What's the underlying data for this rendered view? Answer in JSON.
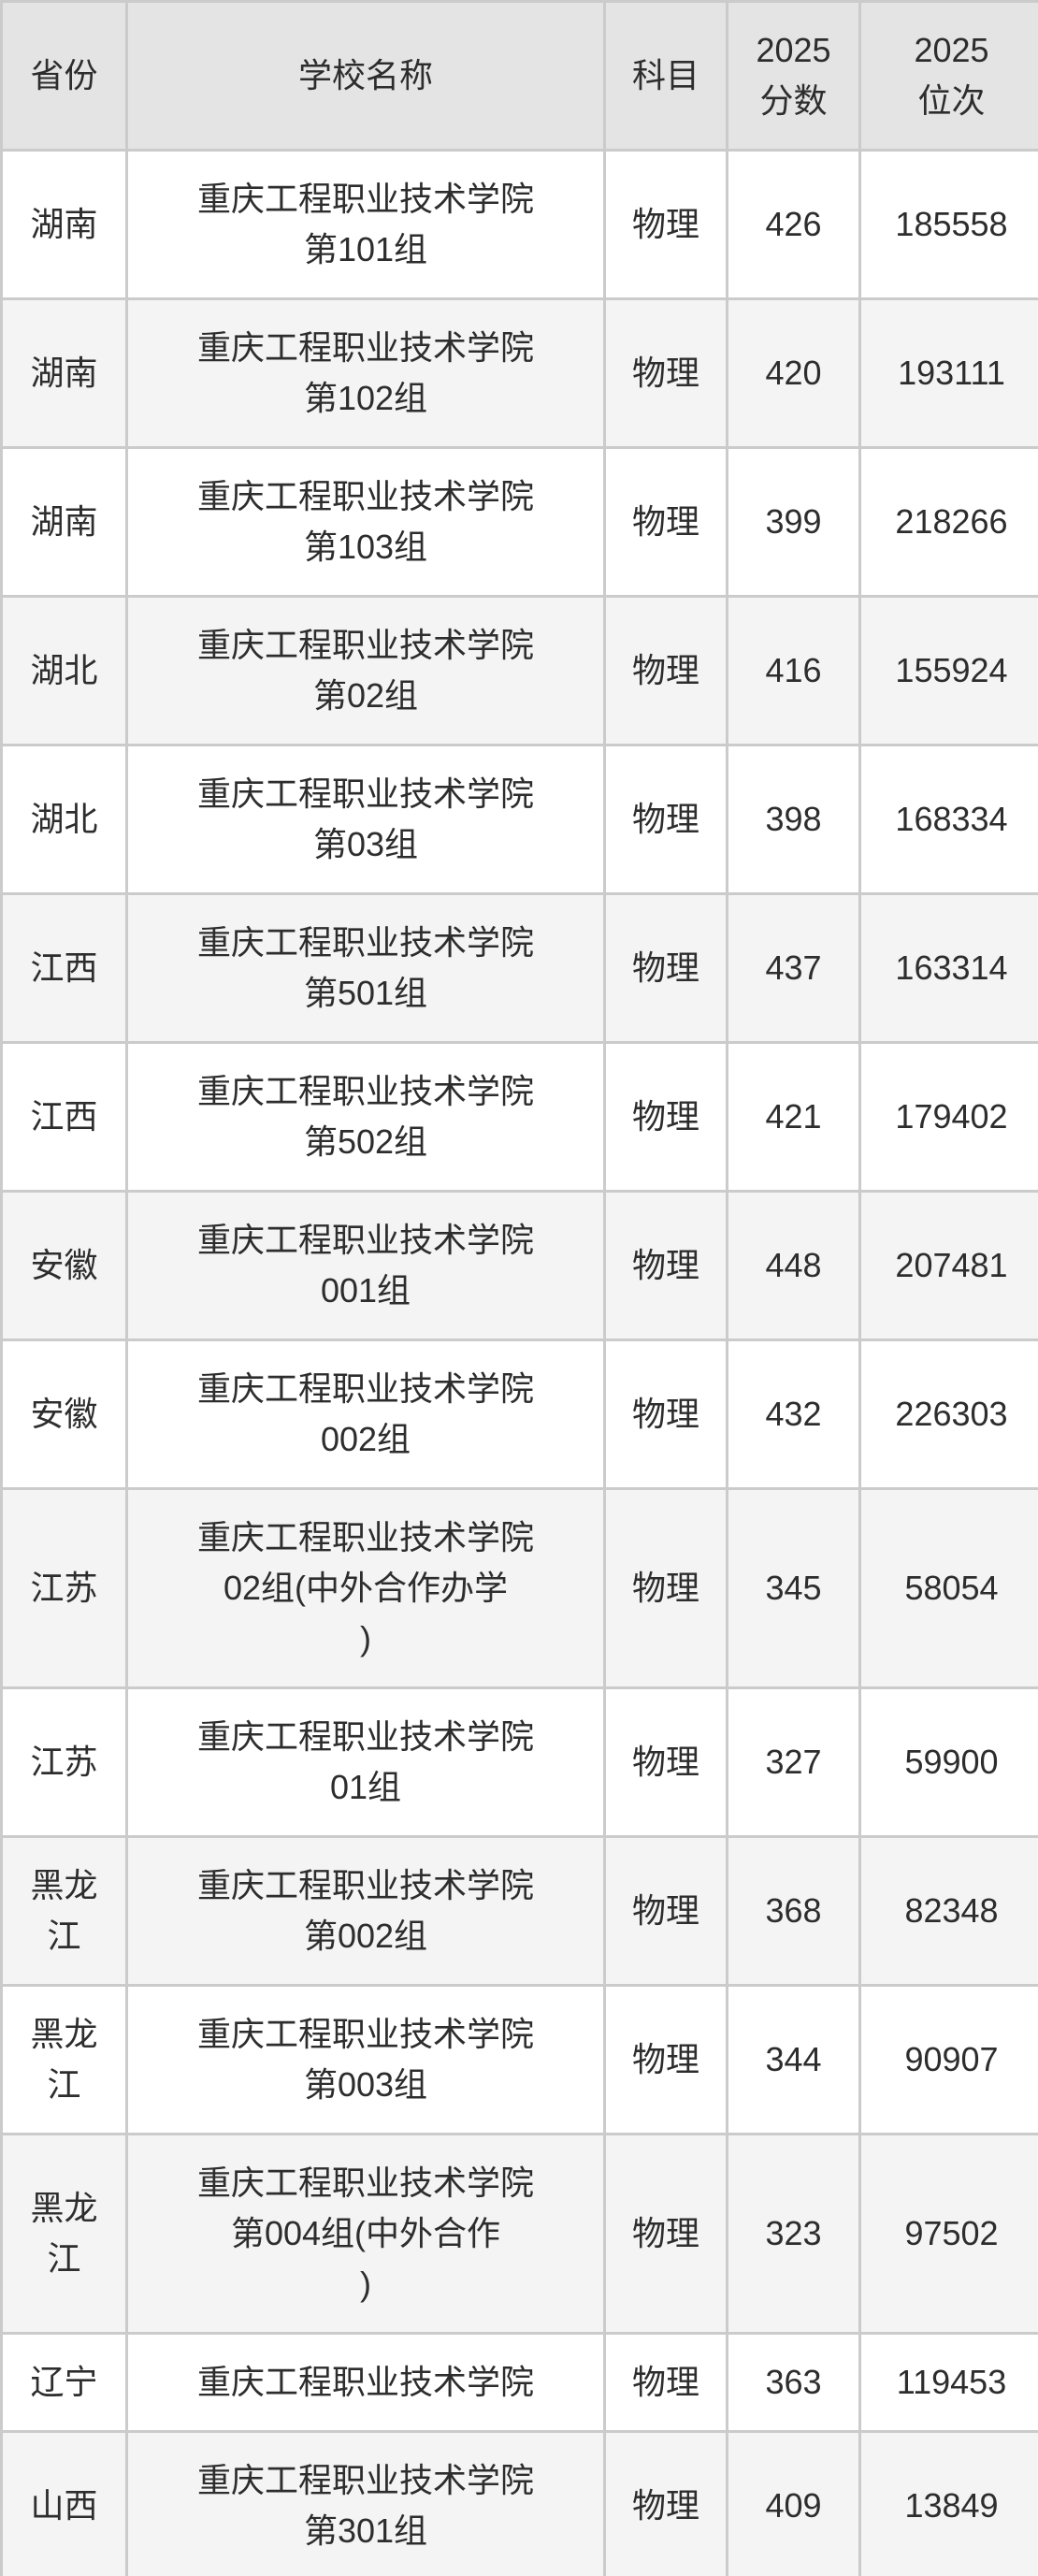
{
  "colors": {
    "border": "#cbcbcb",
    "header_bg": "#e4e4e4",
    "row_bg": "#ffffff",
    "row_alt_bg": "#f4f4f4",
    "text": "#2d2d2d"
  },
  "table": {
    "columns": [
      {
        "key": "province",
        "label_lines": [
          "省份"
        ]
      },
      {
        "key": "school",
        "label_lines": [
          "学校名称"
        ]
      },
      {
        "key": "subject",
        "label_lines": [
          "科目"
        ]
      },
      {
        "key": "score",
        "label_lines": [
          "2025",
          "分数"
        ]
      },
      {
        "key": "rank",
        "label_lines": [
          "2025",
          "位次"
        ]
      }
    ],
    "rows": [
      {
        "province": "湖南",
        "school_lines": [
          "重庆工程职业技术学院",
          "第101组"
        ],
        "subject": "物理",
        "score": "426",
        "rank": "185558"
      },
      {
        "province": "湖南",
        "school_lines": [
          "重庆工程职业技术学院",
          "第102组"
        ],
        "subject": "物理",
        "score": "420",
        "rank": "193111"
      },
      {
        "province": "湖南",
        "school_lines": [
          "重庆工程职业技术学院",
          "第103组"
        ],
        "subject": "物理",
        "score": "399",
        "rank": "218266"
      },
      {
        "province": "湖北",
        "school_lines": [
          "重庆工程职业技术学院",
          "第02组"
        ],
        "subject": "物理",
        "score": "416",
        "rank": "155924"
      },
      {
        "province": "湖北",
        "school_lines": [
          "重庆工程职业技术学院",
          "第03组"
        ],
        "subject": "物理",
        "score": "398",
        "rank": "168334"
      },
      {
        "province": "江西",
        "school_lines": [
          "重庆工程职业技术学院",
          "第501组"
        ],
        "subject": "物理",
        "score": "437",
        "rank": "163314"
      },
      {
        "province": "江西",
        "school_lines": [
          "重庆工程职业技术学院",
          "第502组"
        ],
        "subject": "物理",
        "score": "421",
        "rank": "179402"
      },
      {
        "province": "安徽",
        "school_lines": [
          "重庆工程职业技术学院",
          "001组"
        ],
        "subject": "物理",
        "score": "448",
        "rank": "207481"
      },
      {
        "province": "安徽",
        "school_lines": [
          "重庆工程职业技术学院",
          "002组"
        ],
        "subject": "物理",
        "score": "432",
        "rank": "226303"
      },
      {
        "province": "江苏",
        "school_lines": [
          "重庆工程职业技术学院",
          "02组(中外合作办学",
          ")"
        ],
        "subject": "物理",
        "score": "345",
        "rank": "58054"
      },
      {
        "province": "江苏",
        "school_lines": [
          "重庆工程职业技术学院",
          "01组"
        ],
        "subject": "物理",
        "score": "327",
        "rank": "59900"
      },
      {
        "province": "黑龙江",
        "school_lines": [
          "重庆工程职业技术学院",
          "第002组"
        ],
        "subject": "物理",
        "score": "368",
        "rank": "82348"
      },
      {
        "province": "黑龙江",
        "school_lines": [
          "重庆工程职业技术学院",
          "第003组"
        ],
        "subject": "物理",
        "score": "344",
        "rank": "90907"
      },
      {
        "province": "黑龙江",
        "school_lines": [
          "重庆工程职业技术学院",
          "第004组(中外合作",
          ")"
        ],
        "subject": "物理",
        "score": "323",
        "rank": "97502"
      },
      {
        "province": "辽宁",
        "school_lines": [
          "重庆工程职业技术学院"
        ],
        "subject": "物理",
        "score": "363",
        "rank": "119453"
      },
      {
        "province": "山西",
        "school_lines": [
          "重庆工程职业技术学院",
          "第301组"
        ],
        "subject": "物理",
        "score": "409",
        "rank": "13849"
      }
    ]
  }
}
